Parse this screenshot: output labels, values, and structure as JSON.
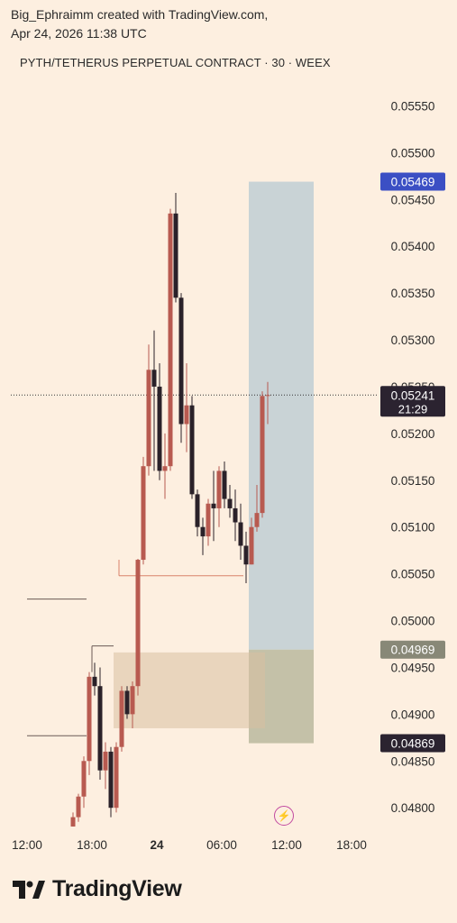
{
  "header": {
    "author_line": "Big_Ephraimm created with TradingView.com,",
    "date_line": "Apr 24, 2026 11:38 UTC"
  },
  "symbol_line": "PYTH/TETHERUS PERPETUAL CONTRACT · 30 · WEEX",
  "footer": {
    "brand": "TradingView",
    "logo_icon": "tradingview-logo-icon"
  },
  "colors": {
    "background": "#fdefe0",
    "up": "#b85a50",
    "down": "#2a2129",
    "target_zone": "#c9d3d6",
    "stop_zone": "#b5b59a",
    "demand_zone": "#e8d1b8",
    "label_target": "#3b4fc4",
    "label_dark": "#2b2330",
    "label_gray": "#888877"
  },
  "chart_data": {
    "type": "candlestick",
    "title": "PYTH/TETHERUS PERPETUAL CONTRACT · 30 · WEEX",
    "y_axis": {
      "ticks": [
        "0.05550",
        "0.05500",
        "0.05450",
        "0.05400",
        "0.05350",
        "0.05300",
        "0.05250",
        "0.05200",
        "0.05150",
        "0.05100",
        "0.05050",
        "0.05000",
        "0.04950",
        "0.04900",
        "0.04850",
        "0.04800"
      ],
      "range": [
        0.04779,
        0.05588
      ],
      "position": "right"
    },
    "x_axis": {
      "ticks": [
        "12:00",
        "18:00",
        "24",
        "06:00",
        "12:00",
        "18:00"
      ],
      "bold_tick": "24"
    },
    "price_labels": [
      {
        "id": "target",
        "text": "0.05469"
      },
      {
        "id": "current",
        "text": "0.05241",
        "sub": "21:29"
      },
      {
        "id": "entry",
        "text": "0.04969"
      },
      {
        "id": "stop",
        "text": "0.04869"
      }
    ],
    "current_price": 0.05241,
    "position_tool": {
      "entry": 0.04969,
      "target": 0.05469,
      "stop": 0.04869,
      "start": "2026-04-24 08:30",
      "end": "2026-04-24 14:30"
    },
    "demand_zone": {
      "top": 0.04966,
      "bottom": 0.04885,
      "start": "2026-04-23 20:00",
      "end": "2026-04-24 10:00"
    },
    "horizontal_levels": [
      {
        "price": 0.05023,
        "start": "2026-04-23 12:00",
        "end": "2026-04-23 17:30",
        "color": "#6a5a55"
      },
      {
        "price": 0.04877,
        "start": "2026-04-23 12:00",
        "end": "2026-04-23 17:30",
        "color": "#6a5a55"
      },
      {
        "price": 0.04973,
        "start": "2026-04-23 18:00",
        "end": "2026-04-23 20:00",
        "color": "#6a5a55"
      },
      {
        "price": 0.05048,
        "start": "2026-04-23 20:30",
        "end": "2026-04-24 08:00",
        "color": "#d9826a"
      }
    ],
    "time_start": "2026-04-23 16:00",
    "interval_minutes": 30,
    "candles": [
      {
        "o": 0.0478,
        "h": 0.04795,
        "l": 0.0478,
        "c": 0.0479
      },
      {
        "o": 0.0479,
        "h": 0.04815,
        "l": 0.04785,
        "c": 0.04812
      },
      {
        "o": 0.04812,
        "h": 0.04855,
        "l": 0.048,
        "c": 0.0485
      },
      {
        "o": 0.0485,
        "h": 0.04945,
        "l": 0.04835,
        "c": 0.0494
      },
      {
        "o": 0.0494,
        "h": 0.04955,
        "l": 0.0492,
        "c": 0.0493
      },
      {
        "o": 0.0493,
        "h": 0.0495,
        "l": 0.0483,
        "c": 0.0484
      },
      {
        "o": 0.0484,
        "h": 0.0487,
        "l": 0.0482,
        "c": 0.0486
      },
      {
        "o": 0.0486,
        "h": 0.04865,
        "l": 0.0479,
        "c": 0.048
      },
      {
        "o": 0.048,
        "h": 0.0487,
        "l": 0.04795,
        "c": 0.04865
      },
      {
        "o": 0.04865,
        "h": 0.0493,
        "l": 0.0486,
        "c": 0.04925
      },
      {
        "o": 0.04925,
        "h": 0.0493,
        "l": 0.04895,
        "c": 0.049
      },
      {
        "o": 0.049,
        "h": 0.04935,
        "l": 0.04885,
        "c": 0.0493
      },
      {
        "o": 0.0493,
        "h": 0.05066,
        "l": 0.0492,
        "c": 0.05065
      },
      {
        "o": 0.05065,
        "h": 0.05175,
        "l": 0.0506,
        "c": 0.05165
      },
      {
        "o": 0.05165,
        "h": 0.05295,
        "l": 0.05155,
        "c": 0.05268
      },
      {
        "o": 0.05268,
        "h": 0.0531,
        "l": 0.0516,
        "c": 0.0525
      },
      {
        "o": 0.0525,
        "h": 0.05275,
        "l": 0.0515,
        "c": 0.0516
      },
      {
        "o": 0.0516,
        "h": 0.052,
        "l": 0.0513,
        "c": 0.05165
      },
      {
        "o": 0.05165,
        "h": 0.0544,
        "l": 0.0516,
        "c": 0.05435
      },
      {
        "o": 0.05435,
        "h": 0.05457,
        "l": 0.0534,
        "c": 0.05345
      },
      {
        "o": 0.05345,
        "h": 0.0535,
        "l": 0.0519,
        "c": 0.0521
      },
      {
        "o": 0.0521,
        "h": 0.05275,
        "l": 0.0518,
        "c": 0.0523
      },
      {
        "o": 0.0523,
        "h": 0.0524,
        "l": 0.0513,
        "c": 0.05135
      },
      {
        "o": 0.05135,
        "h": 0.0514,
        "l": 0.0509,
        "c": 0.051
      },
      {
        "o": 0.051,
        "h": 0.0511,
        "l": 0.0507,
        "c": 0.0509
      },
      {
        "o": 0.0509,
        "h": 0.0513,
        "l": 0.0508,
        "c": 0.05125
      },
      {
        "o": 0.05125,
        "h": 0.0516,
        "l": 0.05085,
        "c": 0.0512
      },
      {
        "o": 0.0512,
        "h": 0.05165,
        "l": 0.051,
        "c": 0.0516
      },
      {
        "o": 0.0516,
        "h": 0.0517,
        "l": 0.0512,
        "c": 0.0513
      },
      {
        "o": 0.0513,
        "h": 0.05145,
        "l": 0.0511,
        "c": 0.0512
      },
      {
        "o": 0.0512,
        "h": 0.0514,
        "l": 0.05085,
        "c": 0.05105
      },
      {
        "o": 0.05105,
        "h": 0.05125,
        "l": 0.05065,
        "c": 0.0508
      },
      {
        "o": 0.0508,
        "h": 0.05095,
        "l": 0.0504,
        "c": 0.0506
      },
      {
        "o": 0.0506,
        "h": 0.0511,
        "l": 0.0506,
        "c": 0.051
      },
      {
        "o": 0.051,
        "h": 0.05145,
        "l": 0.05095,
        "c": 0.05115
      },
      {
        "o": 0.05115,
        "h": 0.05245,
        "l": 0.0511,
        "c": 0.0524
      },
      {
        "o": 0.0524,
        "h": 0.05255,
        "l": 0.0521,
        "c": 0.05241
      }
    ]
  }
}
